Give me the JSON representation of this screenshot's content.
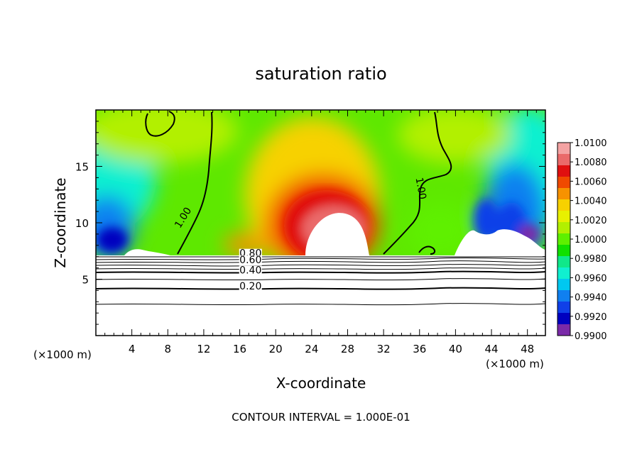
{
  "chart_data": {
    "type": "heatmap",
    "title": "saturation ratio",
    "xlabel": "X-coordinate",
    "ylabel": "Z-coordinate",
    "x_unit_left": "(×1000 m)",
    "x_unit_right": "(×1000 m)",
    "x_ticks": [
      "4",
      "8",
      "12",
      "16",
      "20",
      "24",
      "28",
      "32",
      "36",
      "40",
      "44",
      "48"
    ],
    "y_ticks": [
      "5",
      "10",
      "15"
    ],
    "xlim": [
      0,
      50
    ],
    "ylim": [
      0,
      20
    ],
    "footer": "CONTOUR INTERVAL = 1.000E-01",
    "colorbar": {
      "ticks": [
        "1.0100",
        "1.0080",
        "1.0060",
        "1.0040",
        "1.0020",
        "1.0000",
        "0.9980",
        "0.9960",
        "0.9940",
        "0.9920",
        "0.9900"
      ],
      "colors": [
        "#f4a3a3",
        "#ea6a6a",
        "#e01010",
        "#f04a00",
        "#f79200",
        "#f7d100",
        "#e8f000",
        "#b2f000",
        "#5ef000",
        "#10e000",
        "#10e88a",
        "#10f0d0",
        "#00c8f0",
        "#1080f0",
        "#1040e8",
        "#0000c0",
        "#7a2aa8"
      ],
      "range": [
        0.99,
        1.01
      ]
    },
    "contour_labels": [
      {
        "text": "1.00",
        "x": 10.0,
        "z": 10.3,
        "angle": -58
      },
      {
        "text": "1.00",
        "x": 35.8,
        "z": 13.0,
        "angle": 80
      },
      {
        "text": "0.80",
        "x": 17.2,
        "z": 7.0,
        "angle": 0
      },
      {
        "text": "0.60",
        "x": 17.2,
        "z": 6.4,
        "angle": 0
      },
      {
        "text": "0.40",
        "x": 17.2,
        "z": 5.5,
        "angle": 0
      },
      {
        "text": "0.20",
        "x": 17.2,
        "z": 4.1,
        "angle": 0
      }
    ]
  }
}
